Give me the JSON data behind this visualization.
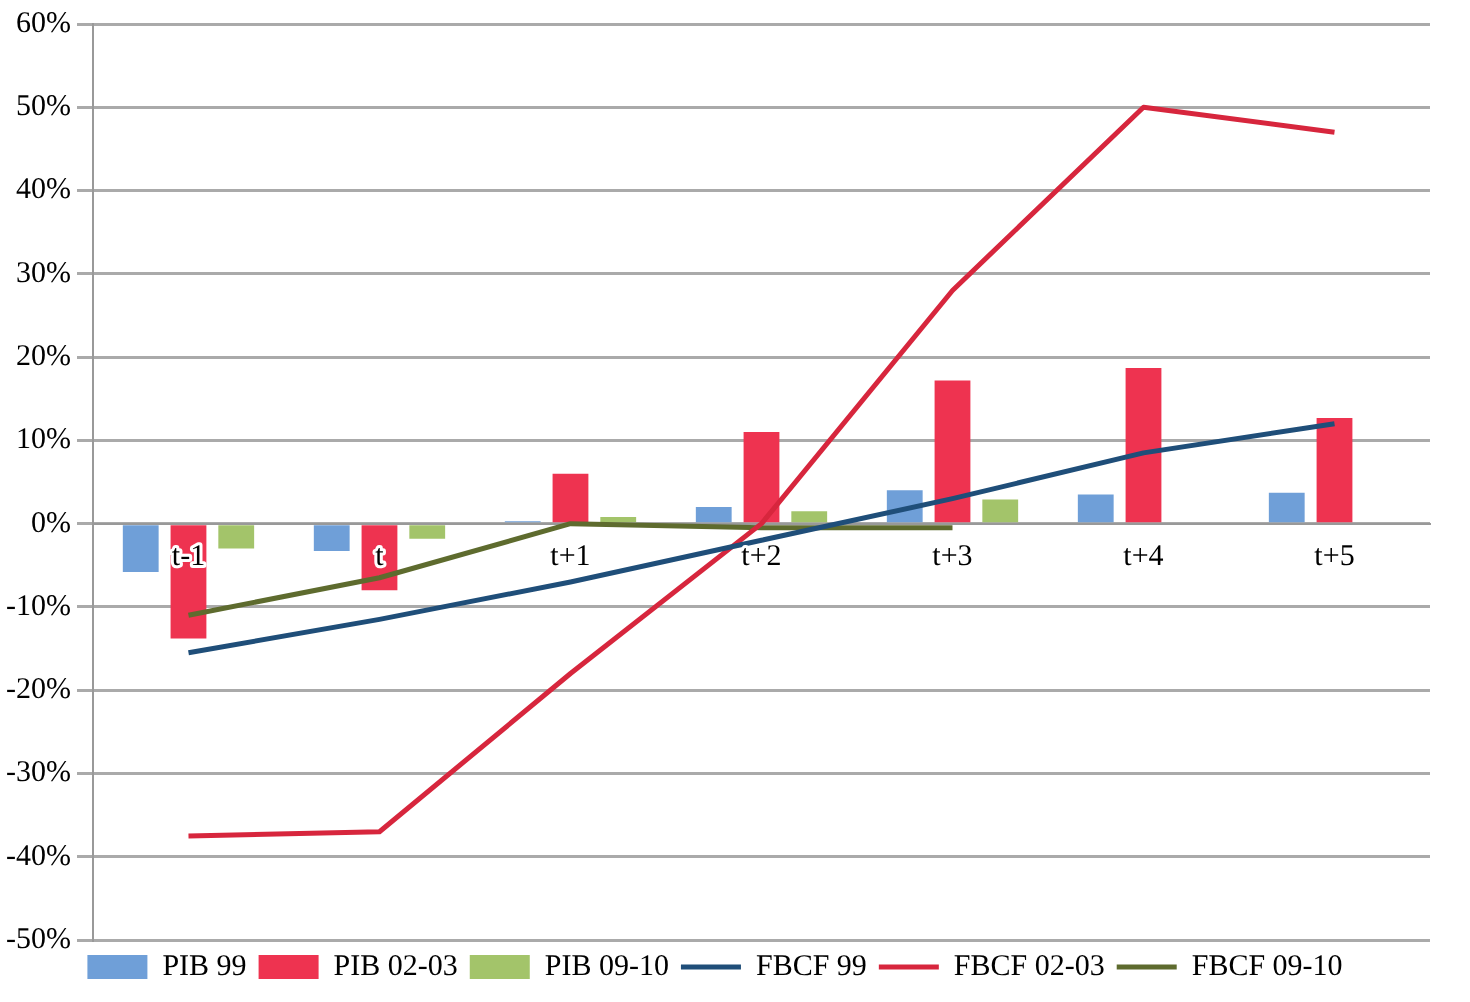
{
  "chart_data": {
    "type": "bar",
    "categories": [
      "t-1",
      "t",
      "t+1",
      "t+2",
      "t+3",
      "t+4",
      "t+5"
    ],
    "series": [
      {
        "name": "PIB 99",
        "color": "#6f9fd8",
        "values": [
          -5.8,
          -3.3,
          0.3,
          2,
          4,
          3.5,
          3.7
        ]
      },
      {
        "name": "PIB 02-03",
        "color": "#ee3350",
        "values": [
          -13.8,
          -8,
          6,
          11,
          17.2,
          18.7,
          12.7
        ]
      },
      {
        "name": "PIB 09-10",
        "color": "#a3c46a",
        "values": [
          -3,
          -1.8,
          0.8,
          1.5,
          2.9,
          null,
          null
        ]
      },
      {
        "name": "FBCF 99",
        "type": "line",
        "color": "#1f4e79",
        "values": [
          -15.5,
          -11.5,
          -7,
          -2,
          3,
          8.5,
          12
        ]
      },
      {
        "name": "FBCF 02-03",
        "type": "line",
        "color": "#d7263d",
        "values": [
          -37.5,
          -37,
          -18,
          0,
          28,
          50,
          47
        ]
      },
      {
        "name": "FBCF 09-10",
        "type": "line",
        "color": "#5e6b2e",
        "values": [
          -11,
          -6.5,
          0,
          -0.5,
          -0.5,
          null,
          null
        ]
      }
    ],
    "ylim": [
      -50,
      60
    ],
    "yticks": [
      {
        "value": -50,
        "label": "-50%"
      },
      {
        "value": -40,
        "label": "-40%"
      },
      {
        "value": -30,
        "label": "-30%"
      },
      {
        "value": -20,
        "label": "-20%"
      },
      {
        "value": -10,
        "label": "-10%"
      },
      {
        "value": 0,
        "label": "0%"
      },
      {
        "value": 10,
        "label": "10%"
      },
      {
        "value": 20,
        "label": "20%"
      },
      {
        "value": 30,
        "label": "30%"
      },
      {
        "value": 40,
        "label": "40%"
      },
      {
        "value": 50,
        "label": "50%"
      },
      {
        "value": 60,
        "label": "60%"
      }
    ],
    "grid": "y",
    "legend": "bottom",
    "marker": "none",
    "line_style": "solid"
  }
}
